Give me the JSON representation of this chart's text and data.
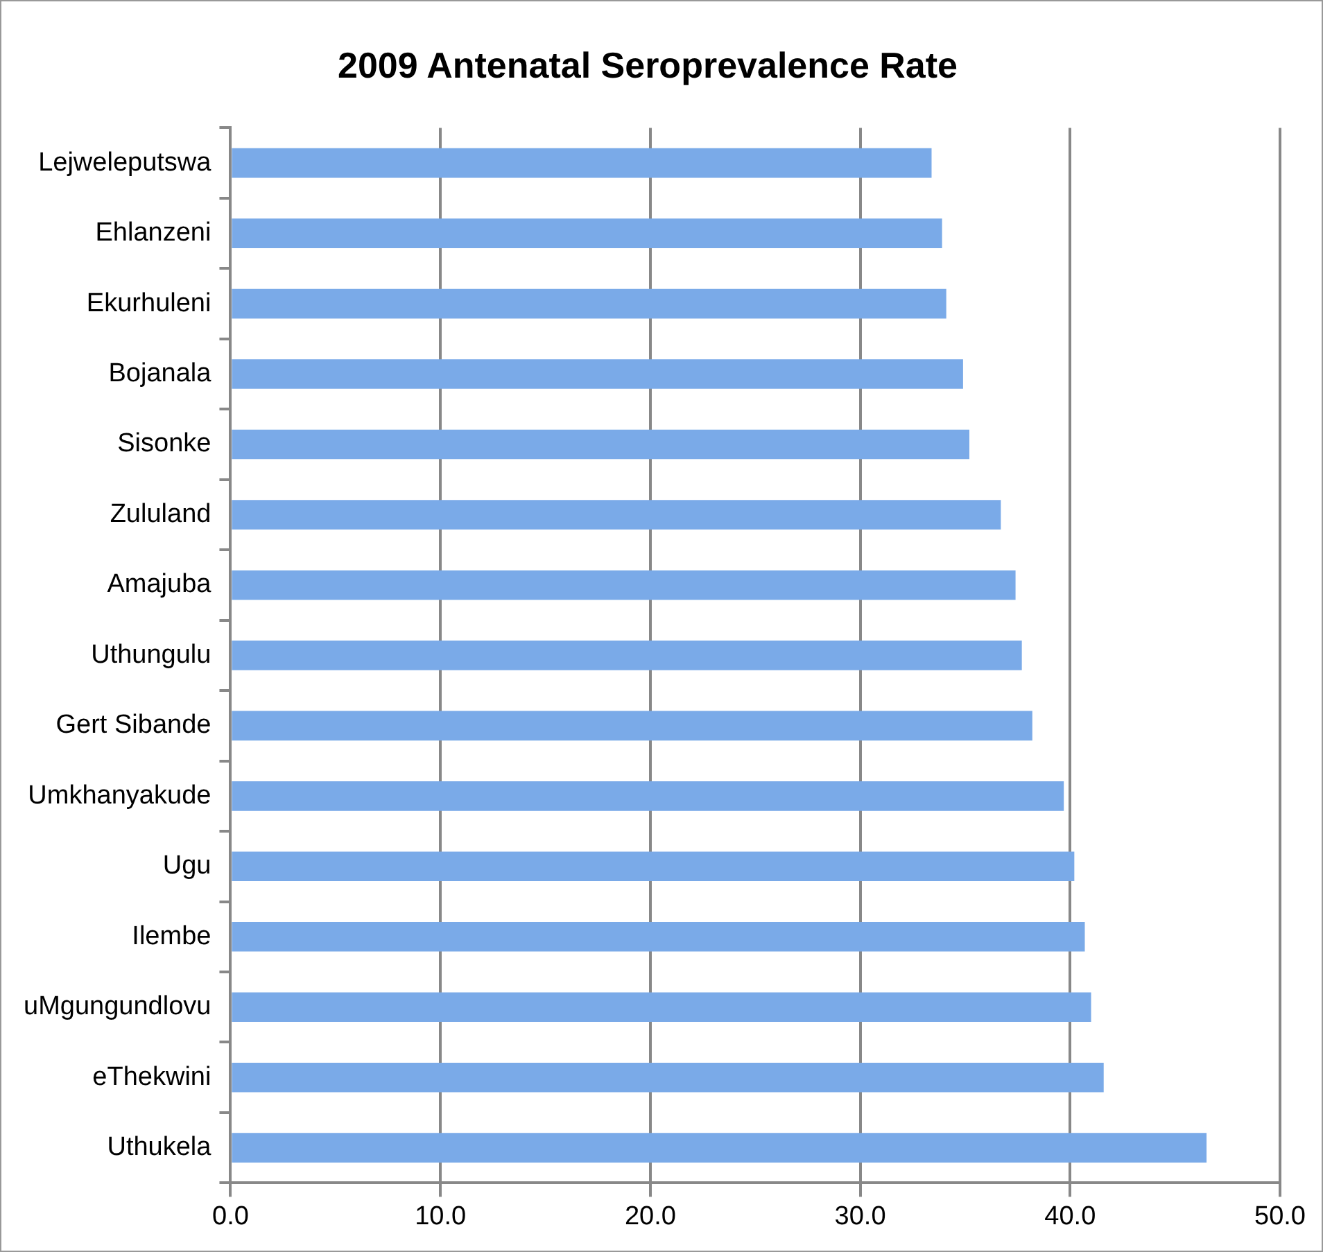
{
  "chart_data": {
    "type": "bar",
    "orientation": "horizontal",
    "title": "2009 Antenatal Seroprevalence Rate",
    "categories": [
      "Lejweleputswa",
      "Ehlanzeni",
      "Ekurhuleni",
      "Bojanala",
      "Sisonke",
      "Zululand",
      "Amajuba",
      "Uthungulu",
      "Gert Sibande",
      "Umkhanyakude",
      "Ugu",
      "Ilembe",
      "uMgungundlovu",
      "eThekwini",
      "Uthukela"
    ],
    "values": [
      33.4,
      33.9,
      34.1,
      34.9,
      35.2,
      36.7,
      37.4,
      37.7,
      38.2,
      39.7,
      40.2,
      40.7,
      41.0,
      41.6,
      46.5
    ],
    "color": "#7aaae8",
    "xlim": [
      0,
      50
    ],
    "xticks": [
      {
        "value": 0,
        "label": "0.0"
      },
      {
        "value": 10,
        "label": "10.0"
      },
      {
        "value": 20,
        "label": "20.0"
      },
      {
        "value": 30,
        "label": "30.0"
      },
      {
        "value": 40,
        "label": "40.0"
      },
      {
        "value": 50,
        "label": "50.0"
      }
    ],
    "grid": "x"
  }
}
